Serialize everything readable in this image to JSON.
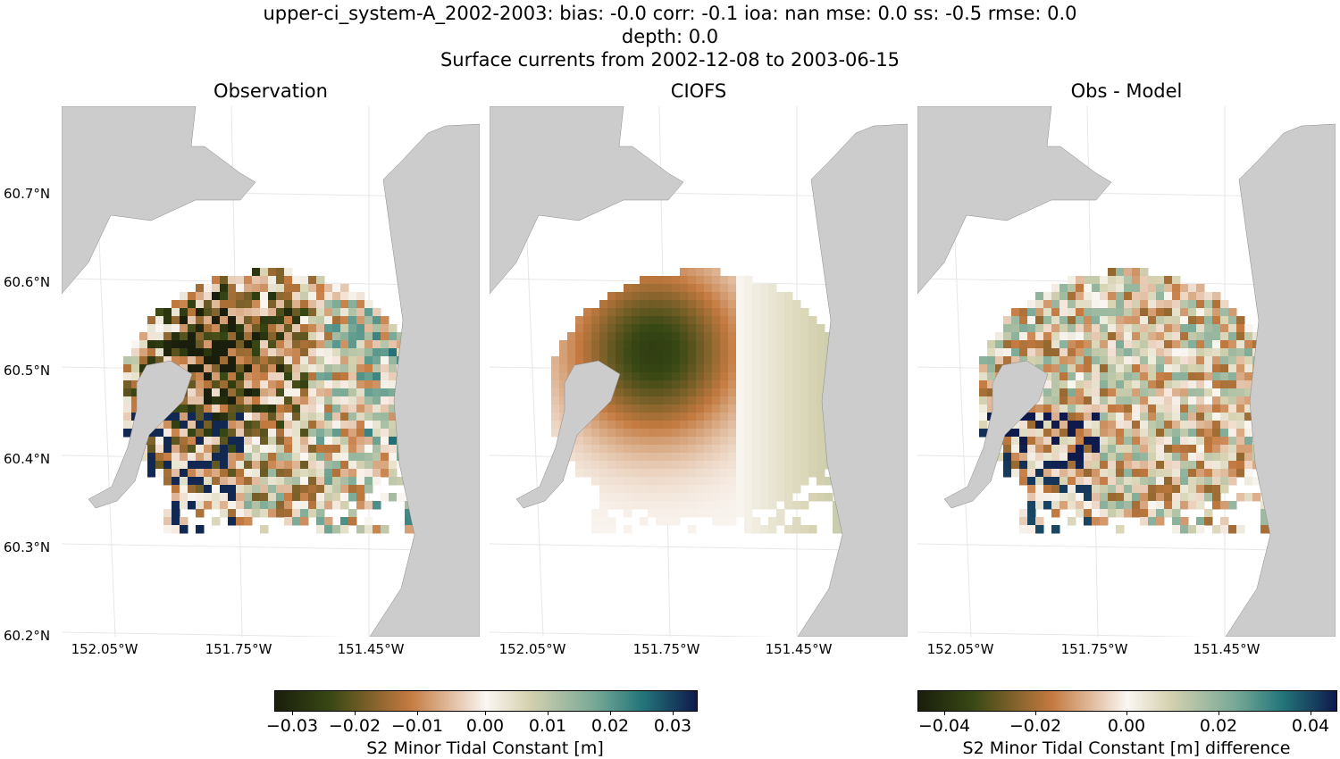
{
  "title": {
    "line1": "upper-ci_system-A_2002-2003: bias: -0.0  corr: -0.1  ioa: nan  mse: 0.0  ss: -0.5  rmse: 0.0",
    "line2": "depth: 0.0",
    "line3": "Surface currents from 2002-12-08 to 2003-06-15"
  },
  "panels": [
    {
      "title": "Observation"
    },
    {
      "title": "CIOFS"
    },
    {
      "title": "Obs - Model"
    }
  ],
  "lat_labels": [
    "60.7°N",
    "60.6°N",
    "60.5°N",
    "60.4°N",
    "60.3°N",
    "60.2°N"
  ],
  "lon_labels": [
    "152.05°W",
    "151.75°W",
    "151.45°W"
  ],
  "colors": {
    "land": "#cccccc",
    "grid": "#e6e6e6"
  },
  "chart_data": [
    {
      "type": "heatmap",
      "title": "Observation",
      "colorbar": {
        "label": "S2 Minor Tidal Constant [m]",
        "range": [
          -0.034,
          0.034
        ],
        "ticks": [
          "−0.03",
          "−0.02",
          "−0.01",
          "0.00",
          "0.01",
          "0.02",
          "0.03"
        ]
      }
    },
    {
      "type": "heatmap",
      "title": "CIOFS",
      "colorbar": {
        "label": "S2 Minor Tidal Constant [m]",
        "range": [
          -0.034,
          0.034
        ]
      }
    },
    {
      "type": "heatmap",
      "title": "Obs - Model",
      "colorbar": {
        "label": "S2 Minor Tidal Constant [m] difference",
        "range": [
          -0.046,
          0.046
        ],
        "ticks": [
          "−0.04",
          "−0.02",
          "0.00",
          "0.02",
          "0.04"
        ]
      }
    }
  ]
}
